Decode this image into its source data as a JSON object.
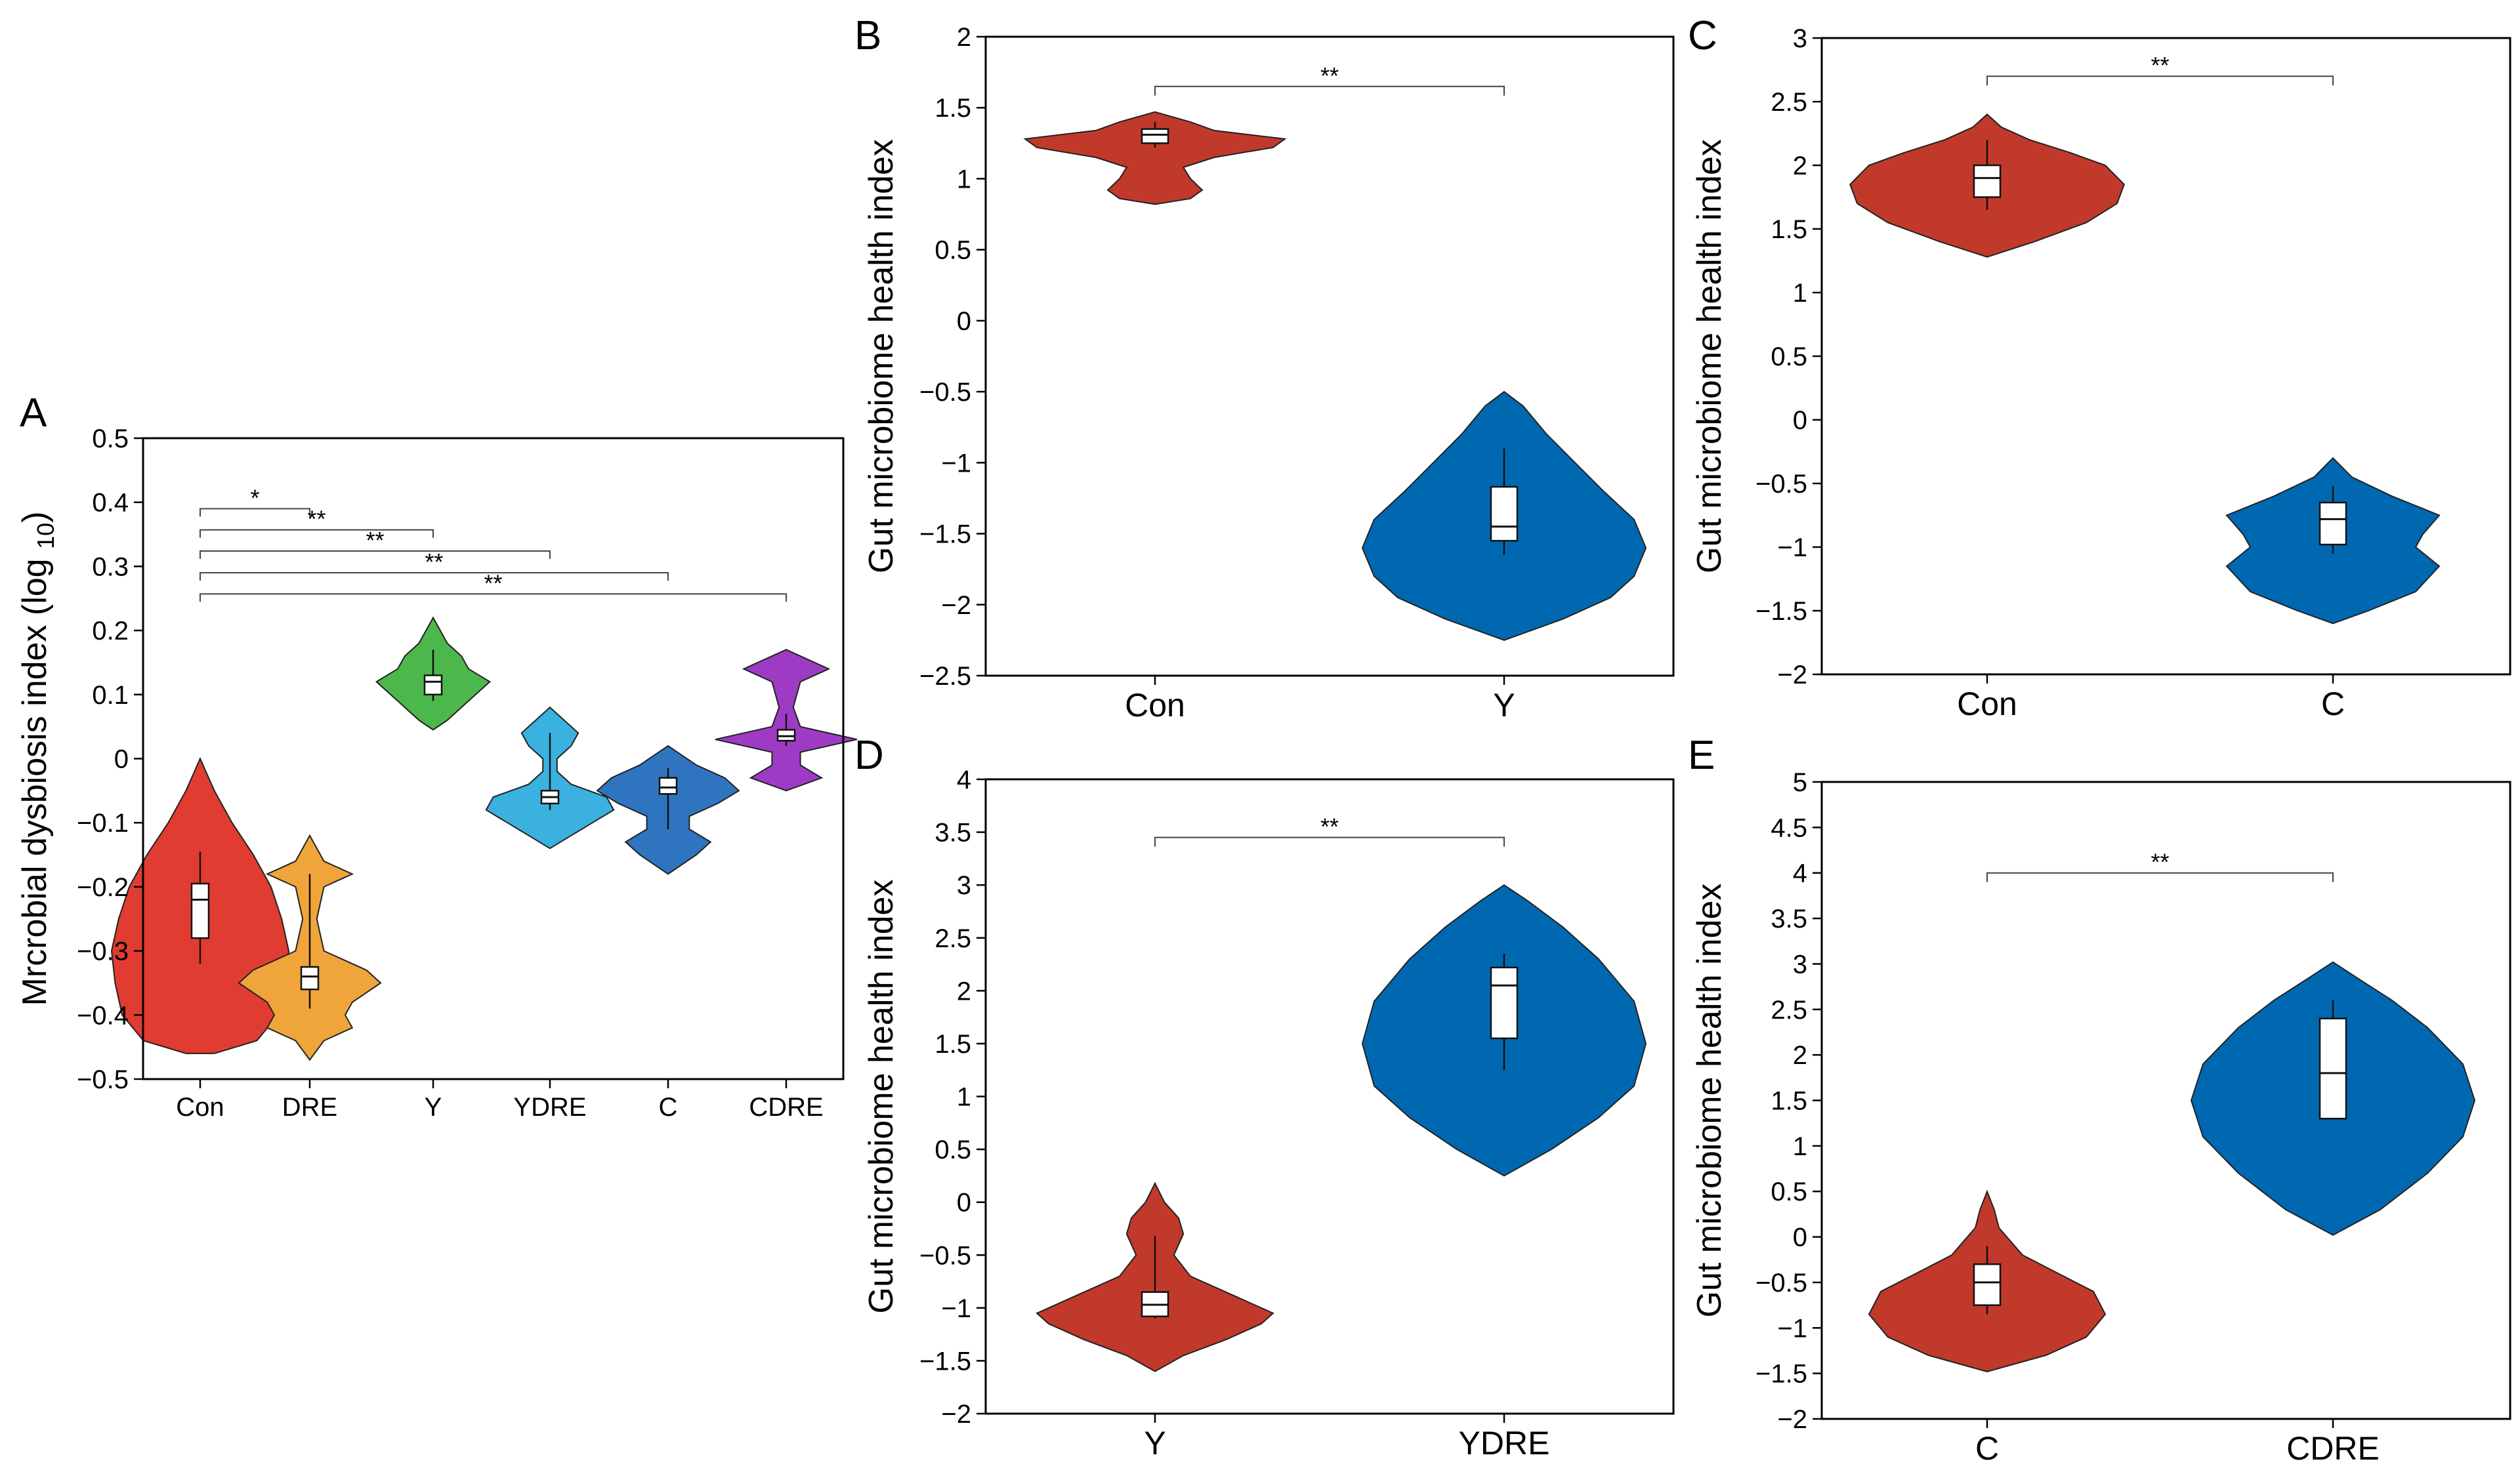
{
  "chart_data": [
    {
      "id": "A",
      "panel_label": "A",
      "type": "violin",
      "categories": [
        "Con",
        "DRE",
        "Y",
        "YDRE",
        "C",
        "CDRE"
      ],
      "ylabel": "Mrcrobial dysbiosis index (log ",
      "ylabel_sub": "10",
      "ylabel_end": ")",
      "ylim": [
        -0.5,
        0.5
      ],
      "yticks": [
        -0.5,
        -0.4,
        -0.3,
        -0.2,
        -0.1,
        0,
        0.1,
        0.2,
        0.3,
        0.4,
        0.5
      ],
      "ytick_labels": [
        "−0.5",
        "−0.4",
        "−0.3",
        "−0.2",
        "−0.1",
        "0",
        "0.1",
        "0.2",
        "0.3",
        "0.4",
        "0.5"
      ],
      "series": [
        {
          "name": "Con",
          "color": "#e03c31",
          "violin": [
            [
              -0.46,
              0.02
            ],
            [
              -0.44,
              0.08
            ],
            [
              -0.4,
              0.11
            ],
            [
              -0.35,
              0.12
            ],
            [
              -0.3,
              0.125
            ],
            [
              -0.25,
              0.115
            ],
            [
              -0.2,
              0.1
            ],
            [
              -0.15,
              0.075
            ],
            [
              -0.1,
              0.045
            ],
            [
              -0.05,
              0.02
            ],
            [
              0.0,
              0.0
            ]
          ],
          "box": {
            "min": -0.32,
            "q1": -0.28,
            "median": -0.22,
            "q3": -0.195,
            "max": -0.145
          }
        },
        {
          "name": "DRE",
          "color": "#f0a53a",
          "violin": [
            [
              -0.47,
              0.0
            ],
            [
              -0.44,
              0.02
            ],
            [
              -0.42,
              0.06
            ],
            [
              -0.4,
              0.05
            ],
            [
              -0.38,
              0.06
            ],
            [
              -0.35,
              0.1
            ],
            [
              -0.33,
              0.08
            ],
            [
              -0.3,
              0.02
            ],
            [
              -0.25,
              0.01
            ],
            [
              -0.2,
              0.02
            ],
            [
              -0.18,
              0.06
            ],
            [
              -0.16,
              0.02
            ],
            [
              -0.12,
              0.0
            ]
          ],
          "box": {
            "min": -0.39,
            "q1": -0.36,
            "median": -0.34,
            "q3": -0.325,
            "max": -0.18
          }
        },
        {
          "name": "Y",
          "color": "#4cb84b",
          "violin": [
            [
              0.045,
              0.0
            ],
            [
              0.06,
              0.02
            ],
            [
              0.08,
              0.04
            ],
            [
              0.1,
              0.06
            ],
            [
              0.12,
              0.08
            ],
            [
              0.14,
              0.05
            ],
            [
              0.16,
              0.04
            ],
            [
              0.18,
              0.02
            ],
            [
              0.22,
              0.0
            ]
          ],
          "box": {
            "min": 0.09,
            "q1": 0.1,
            "median": 0.12,
            "q3": 0.13,
            "max": 0.17
          }
        },
        {
          "name": "YDRE",
          "color": "#3ab1de",
          "violin": [
            [
              -0.14,
              0.0
            ],
            [
              -0.12,
              0.03
            ],
            [
              -0.1,
              0.06
            ],
            [
              -0.08,
              0.09
            ],
            [
              -0.06,
              0.08
            ],
            [
              -0.04,
              0.03
            ],
            [
              -0.02,
              0.01
            ],
            [
              0.0,
              0.01
            ],
            [
              0.02,
              0.03
            ],
            [
              0.04,
              0.04
            ],
            [
              0.06,
              0.02
            ],
            [
              0.08,
              0.0
            ]
          ],
          "box": {
            "min": -0.08,
            "q1": -0.07,
            "median": -0.06,
            "q3": -0.05,
            "max": 0.04
          }
        },
        {
          "name": "C",
          "color": "#2f74bf",
          "violin": [
            [
              -0.18,
              0.0
            ],
            [
              -0.15,
              0.04
            ],
            [
              -0.13,
              0.06
            ],
            [
              -0.11,
              0.03
            ],
            [
              -0.09,
              0.03
            ],
            [
              -0.07,
              0.07
            ],
            [
              -0.05,
              0.1
            ],
            [
              -0.03,
              0.08
            ],
            [
              -0.01,
              0.04
            ],
            [
              0.02,
              0.0
            ]
          ],
          "box": {
            "min": -0.11,
            "q1": -0.055,
            "median": -0.045,
            "q3": -0.03,
            "max": -0.015
          }
        },
        {
          "name": "CDRE",
          "color": "#9d3bc5",
          "violin": [
            [
              -0.05,
              0.0
            ],
            [
              -0.03,
              0.05
            ],
            [
              -0.01,
              0.02
            ],
            [
              0.01,
              0.02
            ],
            [
              0.03,
              0.1
            ],
            [
              0.05,
              0.02
            ],
            [
              0.08,
              0.01
            ],
            [
              0.12,
              0.02
            ],
            [
              0.14,
              0.06
            ],
            [
              0.17,
              0.0
            ]
          ],
          "box": {
            "min": 0.02,
            "q1": 0.028,
            "median": 0.035,
            "q3": 0.045,
            "max": 0.07
          }
        }
      ],
      "significance": [
        {
          "from": "Con",
          "to": "DRE",
          "y": 0.39,
          "label": "*"
        },
        {
          "from": "Con",
          "to": "Y",
          "y": 0.357,
          "label": "**"
        },
        {
          "from": "Con",
          "to": "YDRE",
          "y": 0.324,
          "label": "**"
        },
        {
          "from": "Con",
          "to": "C",
          "y": 0.29,
          "label": "**"
        },
        {
          "from": "Con",
          "to": "CDRE",
          "y": 0.257,
          "label": "**"
        }
      ]
    },
    {
      "id": "B",
      "panel_label": "B",
      "type": "violin",
      "categories": [
        "Con",
        "Y"
      ],
      "ylabel": "Gut microbiome health index",
      "ylim": [
        -2.5,
        2
      ],
      "yticks": [
        -2.5,
        -2,
        -1.5,
        -1,
        -0.5,
        0,
        0.5,
        1,
        1.5,
        2
      ],
      "ytick_labels": [
        "−2.5",
        "−2",
        "−1.5",
        "−1",
        "−0.5",
        "0",
        "0.5",
        "1",
        "1.5",
        "2"
      ],
      "series": [
        {
          "name": "Con",
          "color": "#c0392b",
          "violin": [
            [
              0.82,
              0.0
            ],
            [
              0.86,
              0.15
            ],
            [
              0.92,
              0.2
            ],
            [
              1.0,
              0.15
            ],
            [
              1.08,
              0.12
            ],
            [
              1.15,
              0.25
            ],
            [
              1.22,
              0.5
            ],
            [
              1.28,
              0.55
            ],
            [
              1.34,
              0.25
            ],
            [
              1.4,
              0.15
            ],
            [
              1.47,
              0.0
            ]
          ],
          "box": {
            "min": 1.22,
            "q1": 1.25,
            "median": 1.31,
            "q3": 1.35,
            "max": 1.4
          }
        },
        {
          "name": "Y",
          "color": "#0068b0",
          "violin": [
            [
              -2.25,
              0.0
            ],
            [
              -2.1,
              0.25
            ],
            [
              -1.95,
              0.45
            ],
            [
              -1.8,
              0.55
            ],
            [
              -1.6,
              0.6
            ],
            [
              -1.4,
              0.55
            ],
            [
              -1.2,
              0.42
            ],
            [
              -1.0,
              0.3
            ],
            [
              -0.8,
              0.18
            ],
            [
              -0.6,
              0.08
            ],
            [
              -0.5,
              0.0
            ]
          ],
          "box": {
            "min": -1.65,
            "q1": -1.55,
            "median": -1.45,
            "q3": -1.17,
            "max": -0.9
          }
        }
      ],
      "significance": [
        {
          "from": "Con",
          "to": "Y",
          "y": 1.65,
          "label": "**"
        }
      ]
    },
    {
      "id": "C",
      "panel_label": "C",
      "type": "violin",
      "categories": [
        "Con",
        "C"
      ],
      "ylabel": "Gut microbiome health index",
      "ylim": [
        -2,
        3
      ],
      "yticks": [
        -2,
        -1.5,
        -1,
        -0.5,
        0,
        0.5,
        1,
        1.5,
        2,
        2.5,
        3
      ],
      "ytick_labels": [
        "−2",
        "−1.5",
        "−1",
        "−0.5",
        "0",
        "0.5",
        "1",
        "1.5",
        "2",
        "2.5",
        "3"
      ],
      "series": [
        {
          "name": "Con",
          "color": "#c0392b",
          "violin": [
            [
              1.28,
              0.0
            ],
            [
              1.4,
              0.2
            ],
            [
              1.55,
              0.42
            ],
            [
              1.7,
              0.55
            ],
            [
              1.85,
              0.58
            ],
            [
              2.0,
              0.5
            ],
            [
              2.1,
              0.35
            ],
            [
              2.2,
              0.18
            ],
            [
              2.3,
              0.06
            ],
            [
              2.4,
              0.0
            ]
          ],
          "box": {
            "min": 1.65,
            "q1": 1.75,
            "median": 1.9,
            "q3": 2.0,
            "max": 2.2
          }
        },
        {
          "name": "C",
          "color": "#0068b0",
          "violin": [
            [
              -1.6,
              0.0
            ],
            [
              -1.5,
              0.15
            ],
            [
              -1.35,
              0.35
            ],
            [
              -1.15,
              0.45
            ],
            [
              -1.0,
              0.35
            ],
            [
              -0.9,
              0.38
            ],
            [
              -0.75,
              0.45
            ],
            [
              -0.6,
              0.25
            ],
            [
              -0.45,
              0.08
            ],
            [
              -0.3,
              0.0
            ]
          ],
          "box": {
            "min": -1.05,
            "q1": -0.98,
            "median": -0.78,
            "q3": -0.65,
            "max": -0.52
          }
        }
      ],
      "significance": [
        {
          "from": "Con",
          "to": "C",
          "y": 2.7,
          "label": "**"
        }
      ]
    },
    {
      "id": "D",
      "panel_label": "D",
      "type": "violin",
      "categories": [
        "Y",
        "YDRE"
      ],
      "ylabel": "Gut microbiome health index",
      "ylim": [
        -2,
        4
      ],
      "yticks": [
        -2,
        -1.5,
        -1,
        -0.5,
        0,
        0.5,
        1,
        1.5,
        2,
        2.5,
        3,
        3.5,
        4
      ],
      "ytick_labels": [
        "−2",
        "−1.5",
        "−1",
        "−0.5",
        "0",
        "0.5",
        "1",
        "1.5",
        "2",
        "2.5",
        "3",
        "3.5",
        "4"
      ],
      "series": [
        {
          "name": "Y",
          "color": "#c0392b",
          "violin": [
            [
              -1.6,
              0.0
            ],
            [
              -1.45,
              0.12
            ],
            [
              -1.3,
              0.3
            ],
            [
              -1.15,
              0.45
            ],
            [
              -1.05,
              0.5
            ],
            [
              -0.9,
              0.35
            ],
            [
              -0.7,
              0.15
            ],
            [
              -0.5,
              0.08
            ],
            [
              -0.3,
              0.12
            ],
            [
              -0.15,
              0.1
            ],
            [
              0.0,
              0.04
            ],
            [
              0.18,
              0.0
            ]
          ],
          "box": {
            "min": -1.1,
            "q1": -1.08,
            "median": -0.97,
            "q3": -0.85,
            "max": -0.32
          }
        },
        {
          "name": "YDRE",
          "color": "#0068b0",
          "violin": [
            [
              0.25,
              0.0
            ],
            [
              0.5,
              0.2
            ],
            [
              0.8,
              0.4
            ],
            [
              1.1,
              0.55
            ],
            [
              1.5,
              0.6
            ],
            [
              1.9,
              0.55
            ],
            [
              2.3,
              0.4
            ],
            [
              2.6,
              0.25
            ],
            [
              2.85,
              0.1
            ],
            [
              3.0,
              0.0
            ]
          ],
          "box": {
            "min": 1.25,
            "q1": 1.55,
            "median": 2.05,
            "q3": 2.22,
            "max": 2.35
          }
        }
      ],
      "significance": [
        {
          "from": "Y",
          "to": "YDRE",
          "y": 3.45,
          "label": "**"
        }
      ]
    },
    {
      "id": "E",
      "panel_label": "E",
      "type": "violin",
      "categories": [
        "C",
        "CDRE"
      ],
      "ylabel": "Gut microbiome health index",
      "ylim": [
        -2,
        5
      ],
      "yticks": [
        -2,
        -1.5,
        -1,
        -0.5,
        0,
        0.5,
        1,
        1.5,
        2,
        2.5,
        3,
        3.5,
        4,
        4.5,
        5
      ],
      "ytick_labels": [
        "−2",
        "−1.5",
        "−1",
        "−0.5",
        "0",
        "0.5",
        "1",
        "1.5",
        "2",
        "2.5",
        "3",
        "3.5",
        "4",
        "4.5",
        "5"
      ],
      "series": [
        {
          "name": "C",
          "color": "#c0392b",
          "violin": [
            [
              -1.48,
              0.0
            ],
            [
              -1.3,
              0.25
            ],
            [
              -1.1,
              0.42
            ],
            [
              -0.85,
              0.5
            ],
            [
              -0.6,
              0.45
            ],
            [
              -0.4,
              0.3
            ],
            [
              -0.2,
              0.15
            ],
            [
              0.1,
              0.05
            ],
            [
              0.3,
              0.03
            ],
            [
              0.5,
              0.0
            ]
          ],
          "box": {
            "min": -0.85,
            "q1": -0.75,
            "median": -0.5,
            "q3": -0.3,
            "max": -0.1
          }
        },
        {
          "name": "CDRE",
          "color": "#0068b0",
          "violin": [
            [
              0.02,
              0.0
            ],
            [
              0.3,
              0.2
            ],
            [
              0.7,
              0.4
            ],
            [
              1.1,
              0.55
            ],
            [
              1.5,
              0.6
            ],
            [
              1.9,
              0.55
            ],
            [
              2.3,
              0.4
            ],
            [
              2.6,
              0.25
            ],
            [
              2.85,
              0.1
            ],
            [
              3.02,
              0.0
            ]
          ],
          "box": {
            "min": 1.3,
            "q1": 1.3,
            "median": 1.8,
            "q3": 2.4,
            "max": 2.6
          }
        }
      ],
      "significance": [
        {
          "from": "C",
          "to": "CDRE",
          "y": 4.0,
          "label": "**"
        }
      ]
    }
  ]
}
